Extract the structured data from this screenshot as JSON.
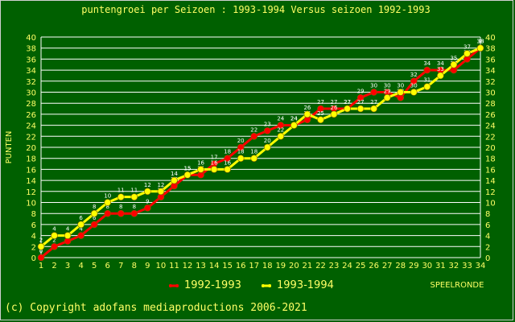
{
  "colors": {
    "background": "#006000",
    "grid": "#ffffff",
    "text": "#ffff66",
    "series_1992": "#ff0000",
    "series_1993": "#ffff00"
  },
  "footer": {
    "copyright": "(c) Copyright adofans mediaproductions 2006-2021"
  },
  "chart_data": {
    "type": "line",
    "title": "puntengroei per Seizoen : 1993-1994 Versus seizoen 1992-1993",
    "ylabel": "PUNTEN",
    "xlabel": "SPEELRONDE",
    "x": [
      1,
      2,
      3,
      4,
      5,
      6,
      7,
      8,
      9,
      10,
      11,
      12,
      13,
      14,
      15,
      16,
      17,
      18,
      19,
      20,
      21,
      22,
      23,
      24,
      25,
      26,
      27,
      28,
      29,
      30,
      31,
      32,
      33,
      34
    ],
    "xlim": [
      1,
      34
    ],
    "ylim": [
      0,
      40
    ],
    "y_ticks": [
      0,
      2,
      4,
      6,
      8,
      10,
      12,
      14,
      16,
      18,
      20,
      22,
      24,
      26,
      28,
      30,
      32,
      34,
      36,
      38,
      40
    ],
    "grid": true,
    "legend_position": "bottom",
    "series": [
      {
        "name": "1992-1993",
        "color": "#ff0000",
        "values": [
          0,
          2,
          3,
          4,
          6,
          8,
          8,
          8,
          9,
          11,
          13,
          15,
          15,
          17,
          18,
          20,
          22,
          23,
          24,
          24,
          25,
          27,
          27,
          27,
          29,
          30,
          30,
          29,
          32,
          34,
          34,
          34,
          36,
          38
        ]
      },
      {
        "name": "1993-1994",
        "color": "#ffff00",
        "values": [
          2,
          4,
          4,
          6,
          8,
          10,
          11,
          11,
          12,
          12,
          14,
          15,
          16,
          16,
          16,
          18,
          18,
          20,
          22,
          24,
          26,
          25,
          26,
          27,
          27,
          27,
          29,
          30,
          30,
          31,
          33,
          35,
          37,
          38
        ]
      }
    ]
  }
}
